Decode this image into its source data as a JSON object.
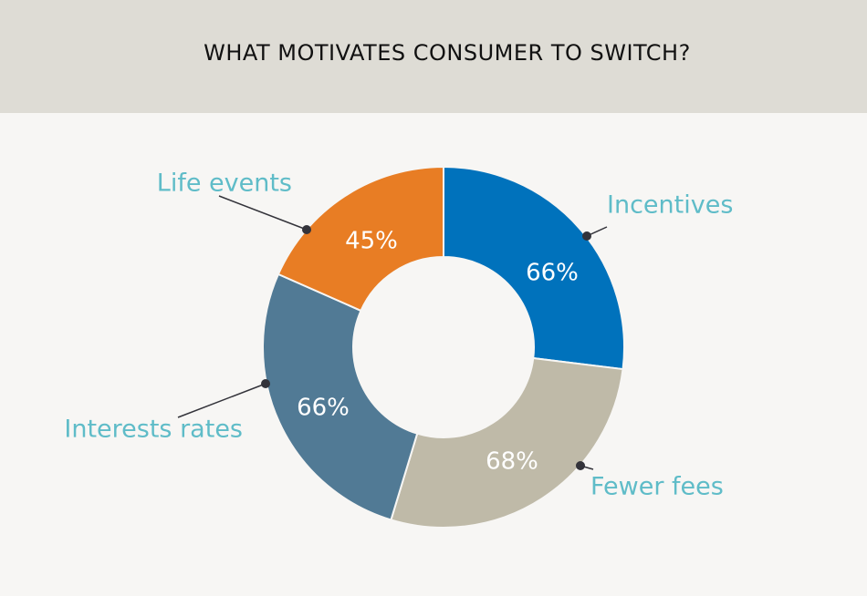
{
  "chart_data": {
    "type": "pie",
    "title": "WHAT MOTIVATES CONSUMER TO SWITCH?",
    "slices": [
      {
        "label": "Incentives",
        "value_label": "66%",
        "value": 66,
        "color": "#0072bc"
      },
      {
        "label": "Fewer fees",
        "value_label": "68%",
        "value": 68,
        "color": "#bfbaa8"
      },
      {
        "label": "Interests rates",
        "value_label": "66%",
        "value": 66,
        "color": "#517a95"
      },
      {
        "label": "Life events",
        "value_label": "45%",
        "value": 45,
        "color": "#e87d24"
      }
    ],
    "label_color": "#5fbcc8",
    "leader_color": "#33333a",
    "legend": "none"
  }
}
